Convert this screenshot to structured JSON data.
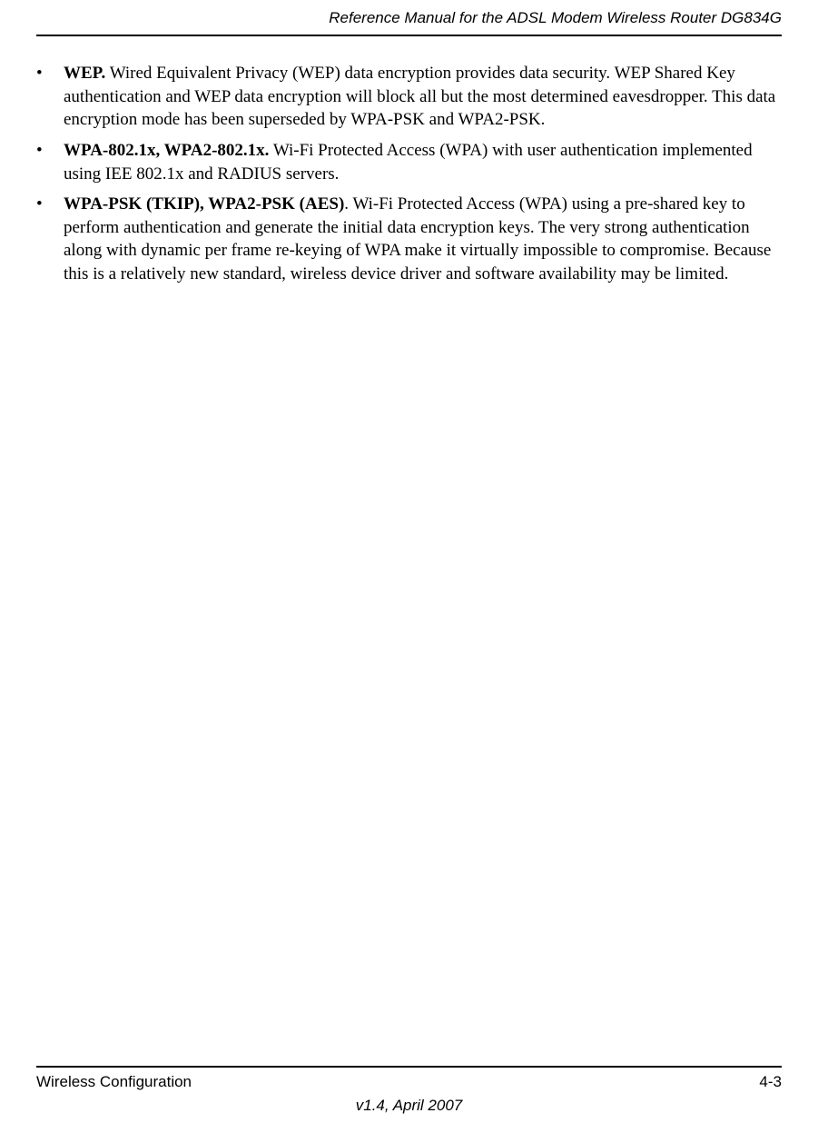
{
  "header": {
    "title": "Reference Manual for the ADSL Modem Wireless Router DG834G"
  },
  "bullets": [
    {
      "bold": "WEP.",
      "text": " Wired Equivalent Privacy (WEP) data encryption provides data security. WEP Shared Key authentication and WEP data encryption will block all but the most determined eavesdropper. This data encryption mode has been superseded by WPA-PSK and WPA2-PSK."
    },
    {
      "bold": "WPA-802.1x, WPA2-802.1x.",
      "text": " Wi-Fi Protected Access (WPA) with user authentication implemented using IEE 802.1x and RADIUS servers."
    },
    {
      "bold": "WPA-PSK (TKIP), WPA2-PSK (AES)",
      "text": ". Wi-Fi Protected Access (WPA) using a pre-shared key to perform authentication and generate the initial data encryption keys. The very strong authentication along with dynamic per frame re-keying of WPA make it virtually impossible to compromise. Because this is a relatively new standard, wireless device driver and software availability may be limited."
    }
  ],
  "footer": {
    "left": "Wireless Configuration",
    "right": "4-3",
    "center": "v1.4, April 2007"
  },
  "bullet_char": "•"
}
